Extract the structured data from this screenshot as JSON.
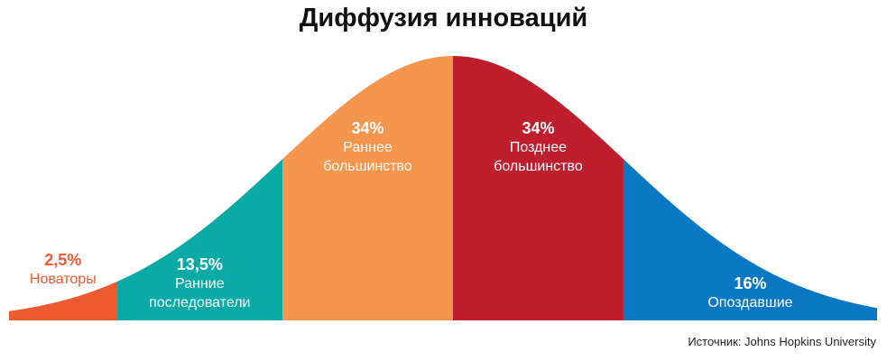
{
  "chart_data": {
    "type": "bell",
    "title": "Диффузия инноваций",
    "categories": [
      "Новаторы",
      "Ранние последователи",
      "Раннее большинство",
      "Позднее большинство",
      "Опоздавшие"
    ],
    "values": [
      2.5,
      13.5,
      34,
      34,
      16
    ],
    "value_labels": [
      "2,5%",
      "13,5%",
      "34%",
      "34%",
      "16%"
    ],
    "colors": [
      "#ee5a2f",
      "#0aaba6",
      "#f4964d",
      "#be1e2d",
      "#0a78c2"
    ],
    "source": "Источник: Johns Hopkins University"
  }
}
